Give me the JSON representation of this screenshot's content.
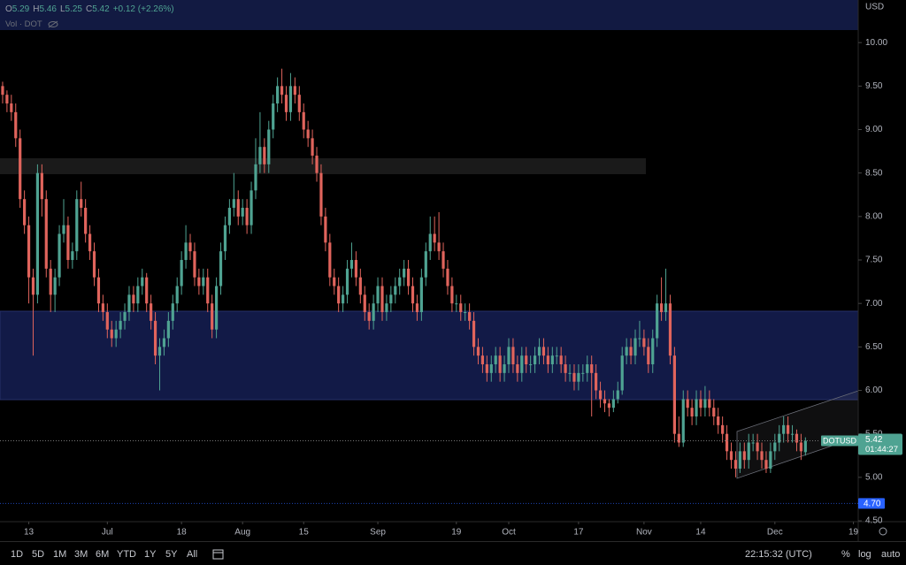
{
  "chart_data": {
    "type": "candlestick",
    "symbol_label": "DOTUSD",
    "currency": "USD",
    "legend": [
      {
        "key": "O",
        "value": "5.29"
      },
      {
        "key": "H",
        "value": "5.46"
      },
      {
        "key": "L",
        "value": "5.25"
      },
      {
        "key": "C",
        "value": "5.42"
      }
    ],
    "change": "+0.12 (+2.26%)",
    "volume_label": "Vol · DOT",
    "colors": {
      "up": "#4fa392",
      "down": "#e0645c"
    },
    "xlim": [
      -0.6,
      196.1
    ],
    "xticks": [
      {
        "value": 6,
        "label": "13"
      },
      {
        "value": 24,
        "label": "Jul"
      },
      {
        "value": 41,
        "label": "18"
      },
      {
        "value": 55,
        "label": "Aug"
      },
      {
        "value": 69,
        "label": "15"
      },
      {
        "value": 86,
        "label": "Sep"
      },
      {
        "value": 104,
        "label": "19"
      },
      {
        "value": 116,
        "label": "Oct"
      },
      {
        "value": 132,
        "label": "17"
      },
      {
        "value": 147,
        "label": "Nov"
      },
      {
        "value": 160,
        "label": "14"
      },
      {
        "value": 177,
        "label": "Dec"
      },
      {
        "value": 195,
        "label": "19"
      }
    ],
    "ylim": [
      4.49,
      10.49
    ],
    "yticks": [
      {
        "value": 10,
        "label": "10.00"
      },
      {
        "value": 9.5,
        "label": "9.50"
      },
      {
        "value": 9,
        "label": "9.00"
      },
      {
        "value": 8.5,
        "label": "8.50"
      },
      {
        "value": 8,
        "label": "8.00"
      },
      {
        "value": 7.5,
        "label": "7.50"
      },
      {
        "value": 7,
        "label": "7.00"
      },
      {
        "value": 6.5,
        "label": "6.50"
      },
      {
        "value": 6,
        "label": "6.00"
      },
      {
        "value": 5.5,
        "label": "5.50"
      },
      {
        "value": 5,
        "label": "5.00"
      },
      {
        "value": 4.5,
        "label": "4.50"
      }
    ],
    "last_price": {
      "value": 5.42,
      "label": "5.42"
    },
    "countdown": "01:44:27",
    "alert_level": {
      "value": 4.7,
      "label": "4.70"
    },
    "ohlc": [
      [
        9.5,
        9.55,
        9.3,
        9.4
      ],
      [
        9.4,
        9.45,
        9.2,
        9.3
      ],
      [
        9.3,
        9.4,
        9.1,
        9.2
      ],
      [
        9.2,
        9.3,
        8.8,
        8.9
      ],
      [
        8.9,
        9.0,
        8.1,
        8.2
      ],
      [
        8.2,
        8.3,
        7.8,
        7.9
      ],
      [
        7.9,
        8.0,
        7.0,
        7.3
      ],
      [
        7.3,
        7.4,
        6.4,
        7.1
      ],
      [
        7.1,
        8.6,
        7.0,
        8.5
      ],
      [
        8.5,
        8.6,
        8.0,
        8.2
      ],
      [
        8.2,
        8.3,
        7.3,
        7.4
      ],
      [
        7.4,
        7.5,
        6.9,
        7.1
      ],
      [
        7.1,
        7.4,
        6.9,
        7.3
      ],
      [
        7.3,
        7.9,
        7.2,
        7.8
      ],
      [
        7.8,
        8.2,
        7.7,
        7.9
      ],
      [
        7.9,
        8.0,
        7.4,
        7.5
      ],
      [
        7.5,
        7.7,
        7.4,
        7.6
      ],
      [
        7.6,
        8.3,
        7.5,
        8.2
      ],
      [
        8.2,
        8.4,
        8.0,
        8.1
      ],
      [
        8.1,
        8.2,
        7.7,
        7.8
      ],
      [
        7.8,
        7.9,
        7.5,
        7.6
      ],
      [
        7.6,
        7.7,
        7.2,
        7.3
      ],
      [
        7.3,
        7.4,
        6.9,
        7.0
      ],
      [
        7.0,
        7.1,
        6.8,
        6.9
      ],
      [
        6.9,
        7.0,
        6.6,
        6.7
      ],
      [
        6.7,
        6.8,
        6.5,
        6.6
      ],
      [
        6.6,
        6.8,
        6.5,
        6.7
      ],
      [
        6.7,
        6.9,
        6.6,
        6.8
      ],
      [
        6.8,
        7.0,
        6.7,
        6.9
      ],
      [
        6.9,
        7.2,
        6.8,
        7.1
      ],
      [
        7.1,
        7.2,
        6.9,
        7.0
      ],
      [
        7.0,
        7.3,
        6.9,
        7.2
      ],
      [
        7.2,
        7.4,
        7.1,
        7.3
      ],
      [
        7.3,
        7.35,
        6.9,
        7.0
      ],
      [
        7.0,
        7.1,
        6.7,
        6.8
      ],
      [
        6.8,
        6.9,
        6.3,
        6.4
      ],
      [
        6.4,
        6.6,
        6.0,
        6.5
      ],
      [
        6.5,
        6.7,
        6.4,
        6.6
      ],
      [
        6.6,
        6.9,
        6.5,
        6.8
      ],
      [
        6.8,
        7.1,
        6.7,
        7.0
      ],
      [
        7.0,
        7.3,
        6.9,
        7.2
      ],
      [
        7.2,
        7.6,
        7.1,
        7.5
      ],
      [
        7.5,
        7.9,
        7.4,
        7.7
      ],
      [
        7.7,
        7.8,
        7.5,
        7.6
      ],
      [
        7.6,
        7.7,
        7.2,
        7.3
      ],
      [
        7.3,
        7.4,
        7.1,
        7.2
      ],
      [
        7.2,
        7.4,
        7.1,
        7.3
      ],
      [
        7.3,
        7.4,
        6.9,
        7.0
      ],
      [
        7.0,
        7.1,
        6.6,
        6.7
      ],
      [
        6.7,
        7.3,
        6.6,
        7.2
      ],
      [
        7.2,
        7.7,
        7.1,
        7.6
      ],
      [
        7.6,
        8.0,
        7.5,
        7.9
      ],
      [
        7.9,
        8.2,
        7.8,
        8.1
      ],
      [
        8.1,
        8.5,
        8.0,
        8.2
      ],
      [
        8.2,
        8.3,
        7.9,
        8.0
      ],
      [
        8.0,
        8.2,
        7.9,
        8.1
      ],
      [
        8.1,
        8.2,
        7.8,
        7.9
      ],
      [
        7.9,
        8.4,
        7.8,
        8.3
      ],
      [
        8.3,
        8.9,
        8.2,
        8.6
      ],
      [
        8.6,
        9.2,
        8.5,
        8.8
      ],
      [
        8.8,
        8.9,
        8.5,
        8.6
      ],
      [
        8.6,
        9.1,
        8.5,
        9.0
      ],
      [
        9.0,
        9.4,
        8.9,
        9.3
      ],
      [
        9.3,
        9.6,
        9.2,
        9.5
      ],
      [
        9.5,
        9.7,
        9.3,
        9.4
      ],
      [
        9.4,
        9.5,
        9.1,
        9.2
      ],
      [
        9.2,
        9.65,
        9.1,
        9.5
      ],
      [
        9.5,
        9.6,
        9.3,
        9.4
      ],
      [
        9.4,
        9.5,
        9.1,
        9.2
      ],
      [
        9.2,
        9.3,
        8.9,
        9.0
      ],
      [
        9.0,
        9.1,
        8.8,
        8.9
      ],
      [
        8.9,
        9.0,
        8.6,
        8.7
      ],
      [
        8.7,
        8.8,
        8.4,
        8.5
      ],
      [
        8.5,
        8.6,
        7.9,
        8.0
      ],
      [
        8.0,
        8.1,
        7.6,
        7.7
      ],
      [
        7.7,
        7.8,
        7.2,
        7.3
      ],
      [
        7.3,
        7.4,
        7.1,
        7.2
      ],
      [
        7.2,
        7.3,
        6.9,
        7.0
      ],
      [
        7.0,
        7.2,
        6.9,
        7.1
      ],
      [
        7.1,
        7.5,
        7.0,
        7.4
      ],
      [
        7.4,
        7.7,
        7.3,
        7.5
      ],
      [
        7.5,
        7.6,
        7.2,
        7.3
      ],
      [
        7.3,
        7.4,
        7.0,
        7.1
      ],
      [
        7.1,
        7.2,
        6.8,
        6.9
      ],
      [
        6.9,
        7.0,
        6.7,
        6.8
      ],
      [
        6.8,
        7.1,
        6.7,
        7.0
      ],
      [
        7.0,
        7.3,
        6.9,
        7.2
      ],
      [
        7.2,
        7.3,
        6.8,
        6.9
      ],
      [
        6.9,
        7.1,
        6.8,
        7.0
      ],
      [
        7.0,
        7.2,
        6.9,
        7.1
      ],
      [
        7.1,
        7.3,
        7.0,
        7.2
      ],
      [
        7.2,
        7.4,
        7.1,
        7.3
      ],
      [
        7.3,
        7.5,
        7.2,
        7.4
      ],
      [
        7.4,
        7.5,
        7.1,
        7.2
      ],
      [
        7.2,
        7.3,
        6.9,
        7.0
      ],
      [
        7.0,
        7.1,
        6.8,
        6.9
      ],
      [
        6.9,
        7.4,
        6.8,
        7.3
      ],
      [
        7.3,
        7.7,
        7.2,
        7.6
      ],
      [
        7.6,
        8.0,
        7.5,
        7.8
      ],
      [
        7.8,
        8.0,
        7.6,
        7.7
      ],
      [
        7.7,
        8.05,
        7.5,
        7.6
      ],
      [
        7.6,
        7.7,
        7.3,
        7.4
      ],
      [
        7.4,
        7.5,
        7.1,
        7.2
      ],
      [
        7.2,
        7.3,
        6.9,
        7.0
      ],
      [
        7.0,
        7.1,
        6.9,
        7.0
      ],
      [
        7.0,
        7.1,
        6.8,
        6.9
      ],
      [
        6.9,
        7.0,
        6.8,
        6.9
      ],
      [
        6.9,
        7.0,
        6.7,
        6.8
      ],
      [
        6.8,
        6.9,
        6.4,
        6.5
      ],
      [
        6.5,
        6.6,
        6.3,
        6.4
      ],
      [
        6.4,
        6.5,
        6.2,
        6.3
      ],
      [
        6.3,
        6.4,
        6.1,
        6.2
      ],
      [
        6.2,
        6.4,
        6.1,
        6.3
      ],
      [
        6.3,
        6.5,
        6.2,
        6.4
      ],
      [
        6.4,
        6.5,
        6.1,
        6.2
      ],
      [
        6.2,
        6.4,
        6.1,
        6.3
      ],
      [
        6.3,
        6.6,
        6.2,
        6.5
      ],
      [
        6.5,
        6.6,
        6.2,
        6.3
      ],
      [
        6.3,
        6.4,
        6.1,
        6.2
      ],
      [
        6.2,
        6.5,
        6.1,
        6.4
      ],
      [
        6.4,
        6.5,
        6.2,
        6.3
      ],
      [
        6.3,
        6.4,
        6.2,
        6.3
      ],
      [
        6.3,
        6.5,
        6.2,
        6.4
      ],
      [
        6.4,
        6.6,
        6.3,
        6.5
      ],
      [
        6.5,
        6.6,
        6.3,
        6.4
      ],
      [
        6.4,
        6.5,
        6.2,
        6.3
      ],
      [
        6.3,
        6.5,
        6.2,
        6.4
      ],
      [
        6.4,
        6.5,
        6.3,
        6.4
      ],
      [
        6.4,
        6.5,
        6.2,
        6.3
      ],
      [
        6.3,
        6.4,
        6.1,
        6.2
      ],
      [
        6.2,
        6.3,
        6.1,
        6.2
      ],
      [
        6.2,
        6.3,
        6.0,
        6.1
      ],
      [
        6.1,
        6.3,
        6.0,
        6.2
      ],
      [
        6.2,
        6.3,
        6.1,
        6.2
      ],
      [
        6.2,
        6.4,
        6.1,
        6.3
      ],
      [
        6.3,
        6.4,
        5.7,
        6.2
      ],
      [
        6.2,
        6.3,
        5.9,
        6.0
      ],
      [
        6.0,
        6.1,
        5.8,
        5.9
      ],
      [
        5.9,
        6.0,
        5.75,
        5.85
      ],
      [
        5.85,
        5.9,
        5.7,
        5.8
      ],
      [
        5.8,
        6.0,
        5.75,
        5.9
      ],
      [
        5.9,
        6.1,
        5.85,
        6.0
      ],
      [
        6.0,
        6.5,
        5.95,
        6.4
      ],
      [
        6.4,
        6.6,
        6.3,
        6.5
      ],
      [
        6.5,
        6.6,
        6.3,
        6.4
      ],
      [
        6.4,
        6.7,
        6.3,
        6.6
      ],
      [
        6.6,
        6.8,
        6.5,
        6.6
      ],
      [
        6.6,
        6.7,
        6.4,
        6.5
      ],
      [
        6.5,
        6.6,
        6.2,
        6.3
      ],
      [
        6.3,
        6.7,
        6.2,
        6.6
      ],
      [
        6.6,
        7.1,
        6.5,
        7.0
      ],
      [
        7.0,
        7.3,
        6.8,
        6.9
      ],
      [
        6.9,
        7.4,
        6.8,
        7.0
      ],
      [
        7.0,
        7.1,
        6.3,
        6.4
      ],
      [
        6.4,
        6.5,
        5.4,
        5.5
      ],
      [
        5.5,
        5.7,
        5.35,
        5.4
      ],
      [
        5.4,
        6.0,
        5.35,
        5.9
      ],
      [
        5.9,
        6.0,
        5.7,
        5.8
      ],
      [
        5.8,
        5.9,
        5.6,
        5.7
      ],
      [
        5.7,
        6.0,
        5.6,
        5.9
      ],
      [
        5.9,
        6.0,
        5.7,
        5.8
      ],
      [
        5.8,
        6.05,
        5.7,
        5.9
      ],
      [
        5.9,
        6.0,
        5.7,
        5.8
      ],
      [
        5.8,
        5.9,
        5.6,
        5.7
      ],
      [
        5.7,
        5.8,
        5.5,
        5.6
      ],
      [
        5.6,
        5.7,
        5.4,
        5.5
      ],
      [
        5.5,
        5.6,
        5.2,
        5.3
      ],
      [
        5.3,
        5.4,
        5.1,
        5.2
      ],
      [
        5.2,
        5.3,
        5.0,
        5.1
      ],
      [
        5.1,
        5.4,
        5.05,
        5.3
      ],
      [
        5.3,
        5.4,
        5.1,
        5.2
      ],
      [
        5.2,
        5.5,
        5.1,
        5.4
      ],
      [
        5.4,
        5.5,
        5.3,
        5.4
      ],
      [
        5.4,
        5.5,
        5.2,
        5.3
      ],
      [
        5.3,
        5.4,
        5.1,
        5.2
      ],
      [
        5.2,
        5.3,
        5.05,
        5.1
      ],
      [
        5.1,
        5.4,
        5.05,
        5.3
      ],
      [
        5.3,
        5.5,
        5.2,
        5.4
      ],
      [
        5.4,
        5.6,
        5.3,
        5.5
      ],
      [
        5.5,
        5.7,
        5.4,
        5.6
      ],
      [
        5.6,
        5.7,
        5.4,
        5.5
      ],
      [
        5.5,
        5.6,
        5.4,
        5.5
      ],
      [
        5.5,
        5.55,
        5.3,
        5.4
      ],
      [
        5.4,
        5.5,
        5.2,
        5.3
      ],
      [
        5.29,
        5.46,
        5.25,
        5.42
      ]
    ]
  },
  "toolbar": {
    "ranges": [
      "1D",
      "5D",
      "1M",
      "3M",
      "6M",
      "YTD",
      "1Y",
      "5Y",
      "All"
    ],
    "time": "22:15:32 (UTC)",
    "percent": "%",
    "log": "log",
    "auto": "auto"
  }
}
